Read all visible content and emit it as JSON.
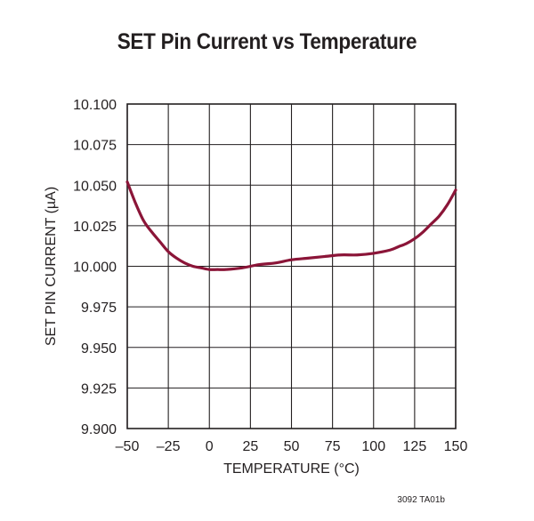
{
  "colors": {
    "curve": "#8b1538",
    "grid": "#231f20",
    "text": "#231f20"
  },
  "figure_id": "3092 TA01b",
  "chart_data": {
    "type": "line",
    "title": "SET Pin Current vs Temperature",
    "xlabel": "TEMPERATURE (°C)",
    "ylabel": "SET PIN CURRENT (µA)",
    "xlim": [
      -50,
      150
    ],
    "ylim": [
      9.9,
      10.1
    ],
    "x_ticks": [
      -50,
      -25,
      0,
      25,
      50,
      75,
      100,
      125,
      150
    ],
    "x_tick_labels": [
      "–50",
      "–25",
      "0",
      "25",
      "50",
      "75",
      "100",
      "125",
      "150"
    ],
    "y_ticks": [
      9.9,
      9.925,
      9.95,
      9.975,
      10.0,
      10.025,
      10.05,
      10.075,
      10.1
    ],
    "y_tick_labels": [
      "9.900",
      "9.925",
      "9.950",
      "9.975",
      "10.000",
      "10.025",
      "10.050",
      "10.075",
      "10.100"
    ],
    "grid": true,
    "legend": "none",
    "series": [
      {
        "name": "SET Pin Current",
        "x": [
          -50,
          -45,
          -40,
          -35,
          -30,
          -25,
          -20,
          -15,
          -10,
          -5,
          0,
          5,
          10,
          20,
          30,
          40,
          50,
          60,
          70,
          80,
          90,
          100,
          110,
          115,
          120,
          125,
          130,
          135,
          140,
          145,
          150
        ],
        "y": [
          10.052,
          10.039,
          10.028,
          10.021,
          10.015,
          10.009,
          10.005,
          10.002,
          10.0,
          9.999,
          9.998,
          9.998,
          9.998,
          9.999,
          10.001,
          10.002,
          10.004,
          10.005,
          10.006,
          10.007,
          10.007,
          10.008,
          10.01,
          10.012,
          10.014,
          10.017,
          10.021,
          10.026,
          10.031,
          10.038,
          10.047
        ]
      }
    ]
  }
}
